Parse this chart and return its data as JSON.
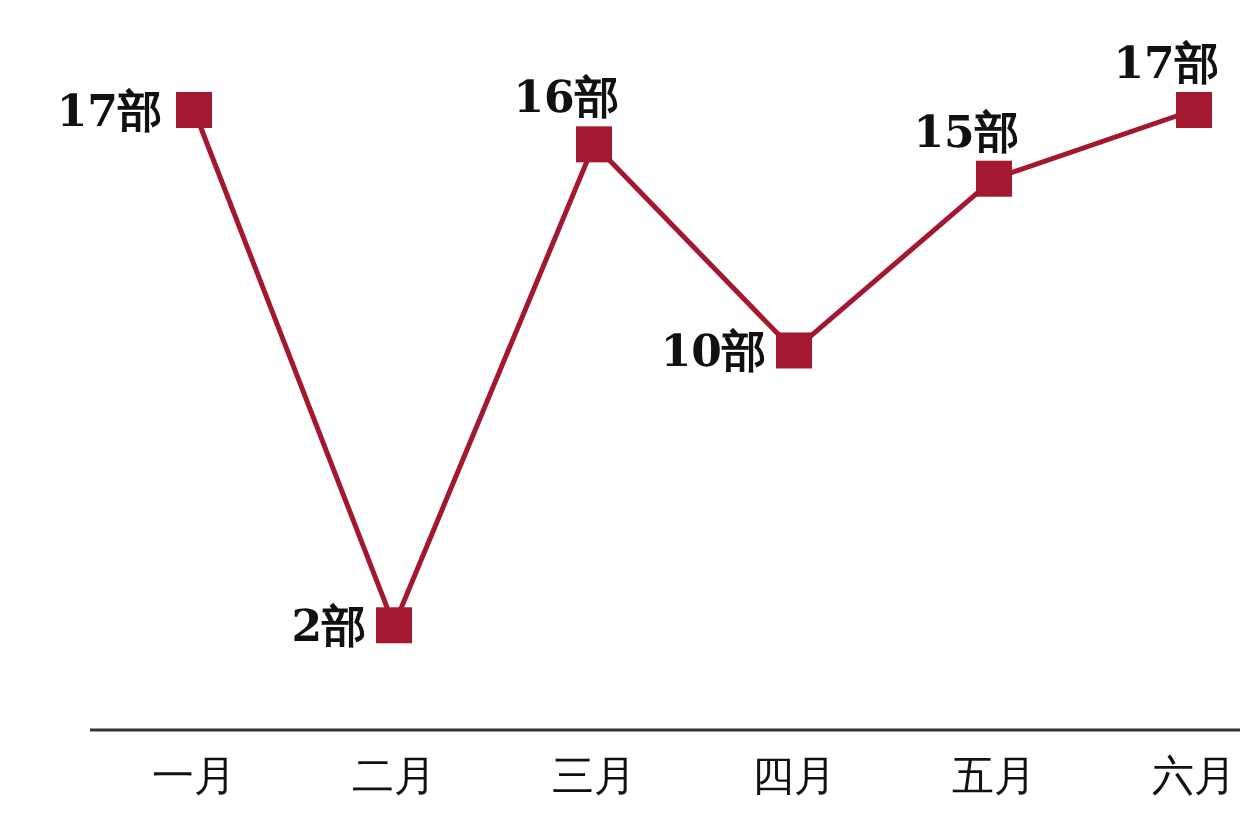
{
  "chart_data": {
    "type": "line",
    "categories": [
      "一月",
      "二月",
      "三月",
      "四月",
      "五月",
      "六月"
    ],
    "series": [
      {
        "color": "#a3182f",
        "values": [
          17,
          2,
          16,
          10,
          15,
          17
        ],
        "value_labels": [
          "17部",
          "2部",
          "16部",
          "10部",
          "15部",
          "17部"
        ]
      }
    ],
    "marker": "square",
    "line_style": "solid"
  }
}
